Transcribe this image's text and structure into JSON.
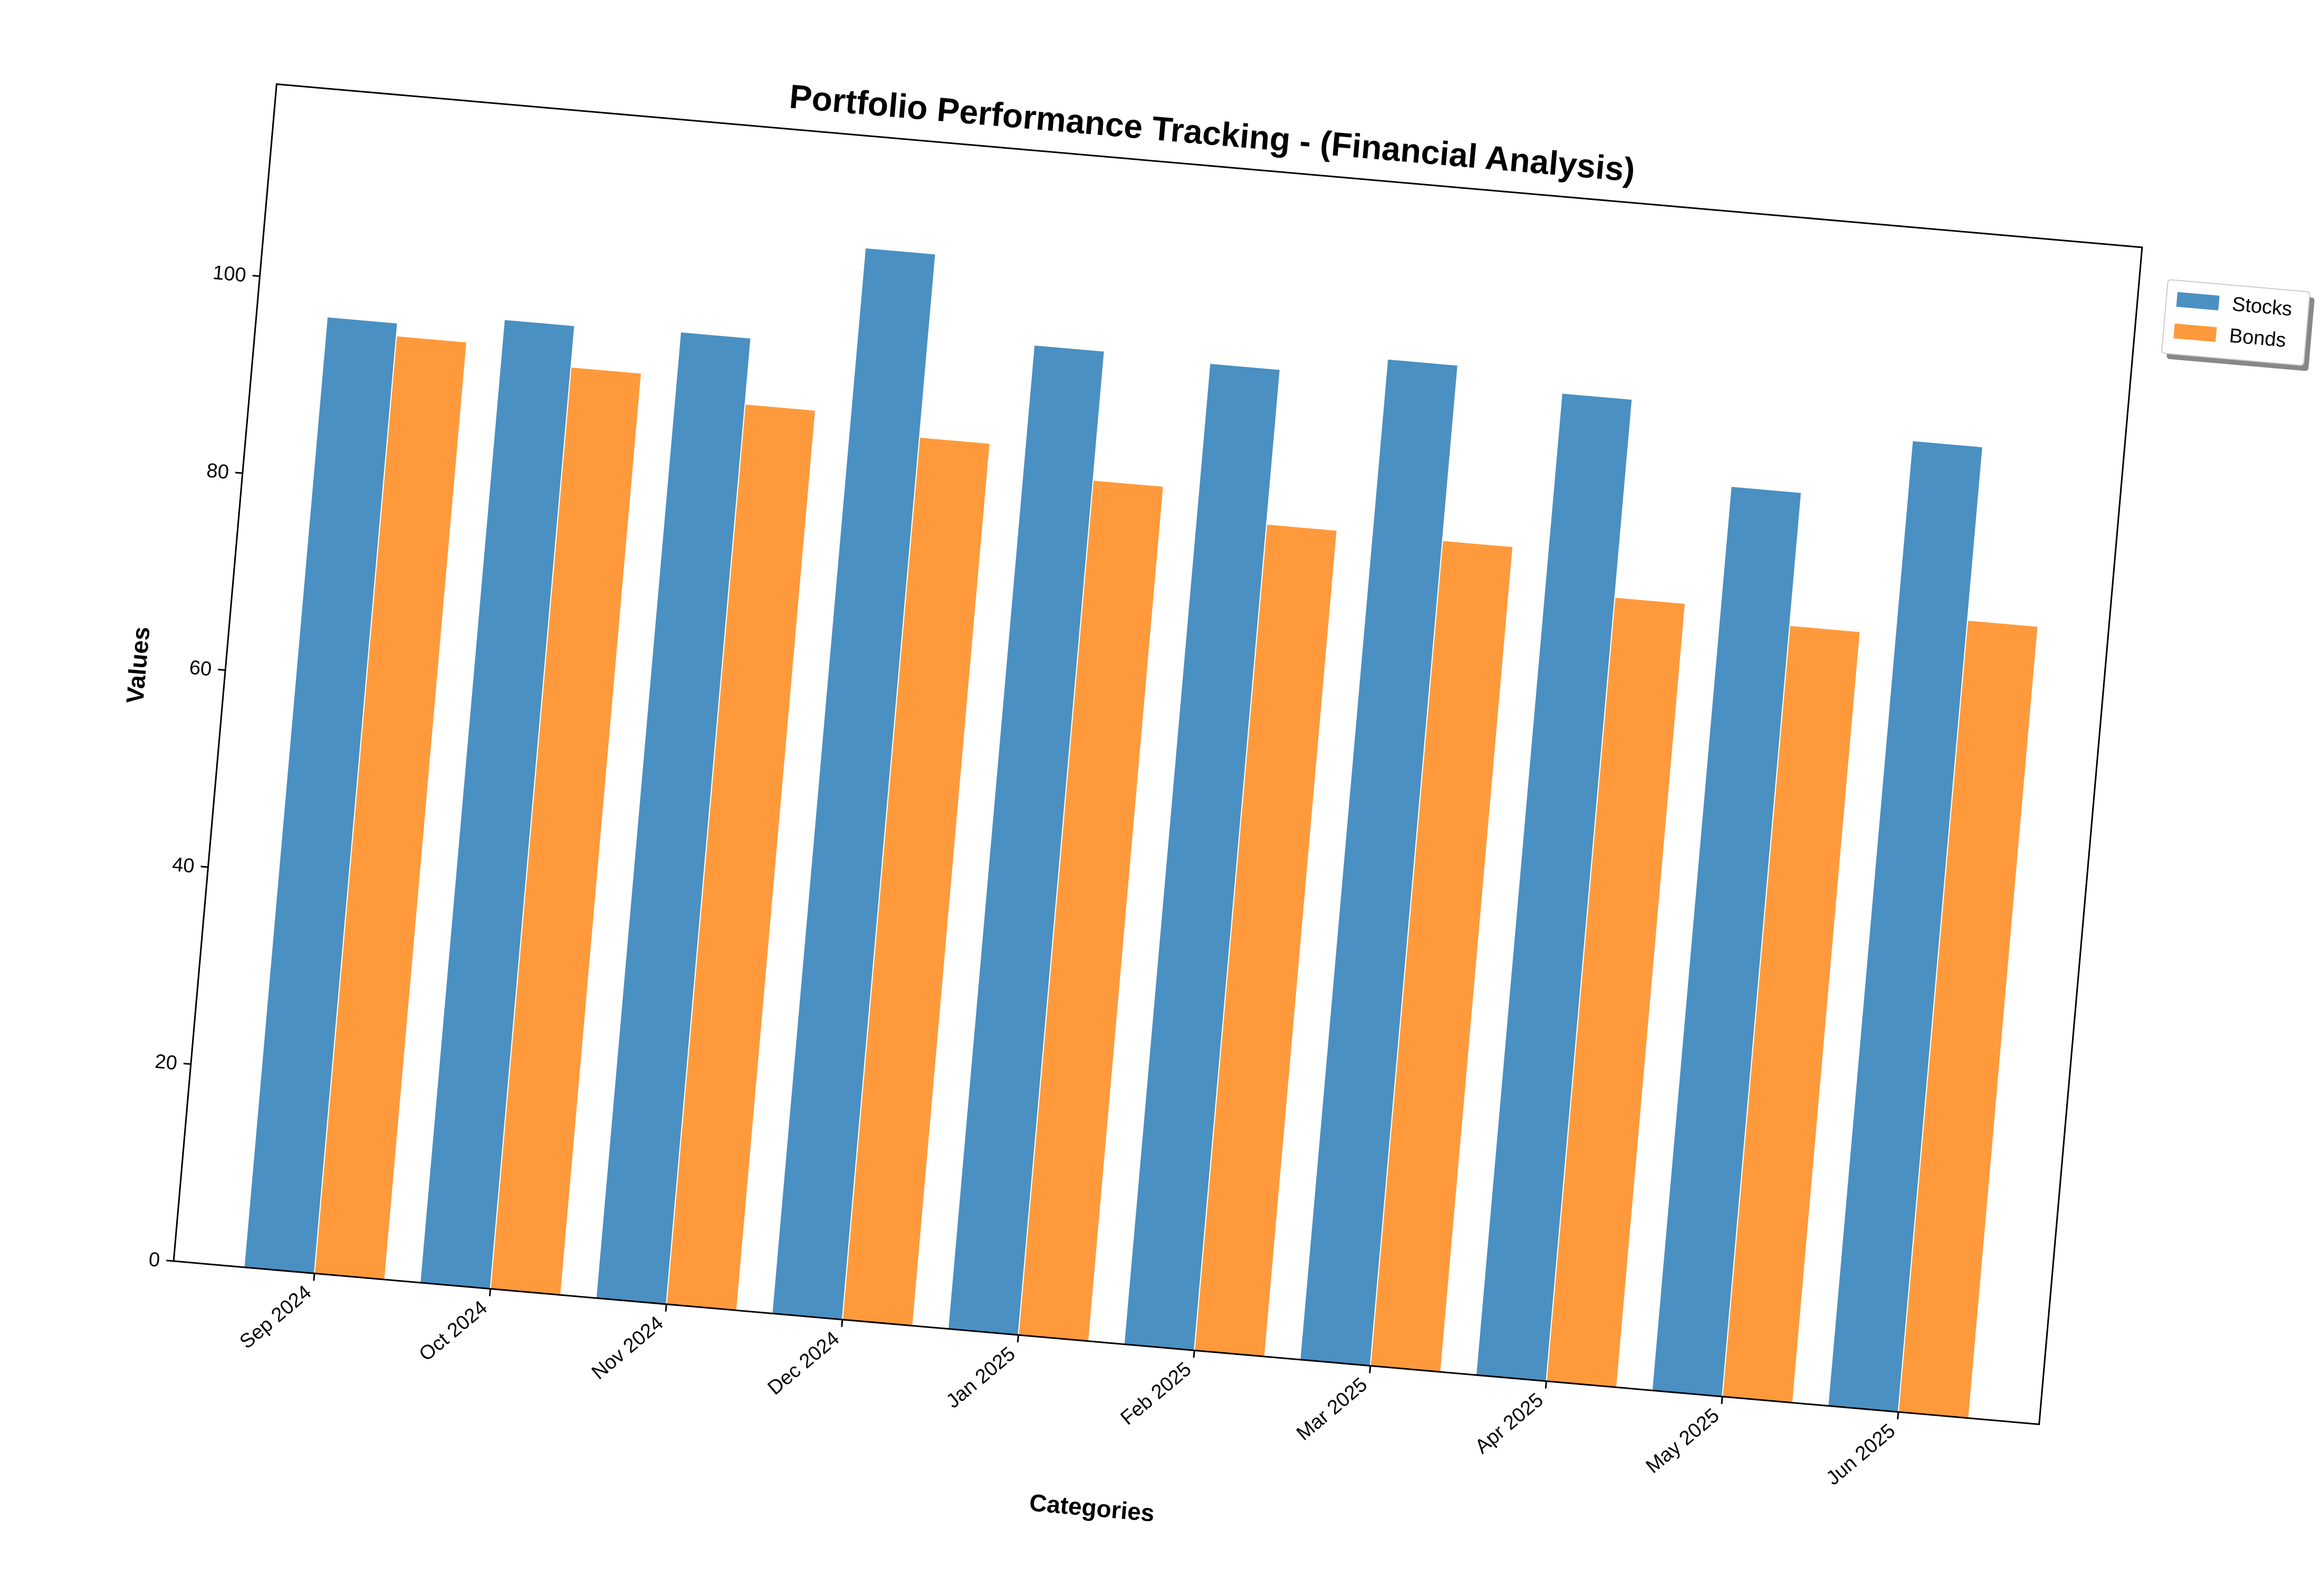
{
  "chart_data": {
    "type": "bar",
    "title": "Portfolio Performance Tracking - (Financial Analysis)",
    "xlabel": "Categories",
    "ylabel": "Values",
    "categories": [
      "Sep 2024",
      "Oct 2024",
      "Nov 2024",
      "Dec 2024",
      "Jan 2025",
      "Feb 2025",
      "Mar 2025",
      "Apr 2025",
      "May 2025",
      "Jun 2025"
    ],
    "series": [
      {
        "name": "Stocks",
        "color": "#4a90c2",
        "values": [
          96.5,
          97.8,
          98.1,
          108.2,
          99.9,
          99.6,
          101.6,
          99.7,
          91.8,
          98.0
        ]
      },
      {
        "name": "Bonds",
        "color": "#fe9a3c",
        "values": [
          95.2,
          93.6,
          91.4,
          89.6,
          86.8,
          83.9,
          83.8,
          79.6,
          78.3,
          80.4
        ]
      }
    ],
    "yticks": [
      0,
      20,
      40,
      60,
      80,
      100
    ],
    "ylim": [
      0,
      119.5
    ],
    "grid": false,
    "legend_position": "upper-right-outside",
    "rotation_deg": 5
  }
}
